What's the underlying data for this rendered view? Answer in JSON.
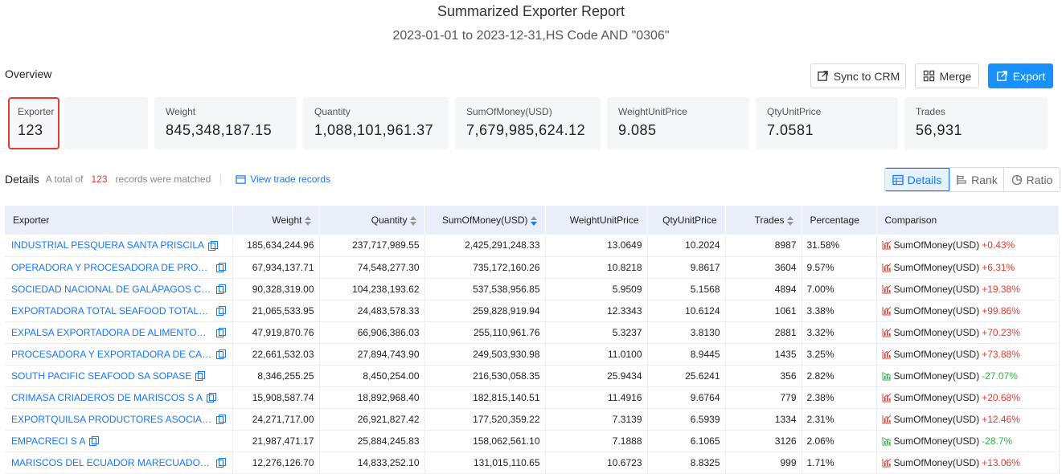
{
  "header": {
    "title": "Summarized Exporter Report",
    "subtitle": "2023-01-01 to 2023-12-31,HS Code AND \"0306\""
  },
  "overview": {
    "label": "Overview",
    "buttons": {
      "sync": "Sync to CRM",
      "merge": "Merge",
      "export": "Export"
    },
    "stats": [
      {
        "label": "Exporter",
        "value": "123"
      },
      {
        "label": "Weight",
        "value": "845,348,187.15"
      },
      {
        "label": "Quantity",
        "value": "1,088,101,961.37"
      },
      {
        "label": "SumOfMoney(USD)",
        "value": "7,679,985,624.12"
      },
      {
        "label": "WeightUnitPrice",
        "value": "9.085"
      },
      {
        "label": "QtyUnitPrice",
        "value": "7.0581"
      },
      {
        "label": "Trades",
        "value": "56,931"
      }
    ]
  },
  "details": {
    "title": "Details",
    "total_prefix": "A total of",
    "count": "123",
    "total_suffix": "records were matched",
    "view_link": "View trade records",
    "views": {
      "details": "Details",
      "rank": "Rank",
      "ratio": "Ratio"
    }
  },
  "table": {
    "columns": [
      "Exporter",
      "Weight",
      "Quantity",
      "SumOfMoney(USD)",
      "WeightUnitPrice",
      "QtyUnitPrice",
      "Trades",
      "Percentage",
      "Comparison"
    ],
    "rows": [
      {
        "exporter": "INDUSTRIAL PESQUERA SANTA PRISCILA",
        "weight": "185,634,244.96",
        "quantity": "237,717,989.55",
        "money": "2,425,291,248.33",
        "wup": "13.0649",
        "qup": "10.2024",
        "trades": "8987",
        "pct": "31.58%",
        "cmp_label": "SumOfMoney(USD)",
        "cmp_change": "+0.43%",
        "dir": "up"
      },
      {
        "exporter": "OPERADORA Y PROCESADORA DE PRODUCTOS…",
        "weight": "67,934,137.71",
        "quantity": "74,548,277.30",
        "money": "735,172,160.26",
        "wup": "10.8218",
        "qup": "9.8617",
        "trades": "3604",
        "pct": "9.57%",
        "cmp_label": "SumOfMoney(USD)",
        "cmp_change": "+6.31%",
        "dir": "up"
      },
      {
        "exporter": "SOCIEDAD NACIONAL DE GALÁPAGOS C A SON…",
        "weight": "90,328,319.00",
        "quantity": "104,238,193.62",
        "money": "537,538,956.85",
        "wup": "5.9509",
        "qup": "5.1568",
        "trades": "4894",
        "pct": "7.00%",
        "cmp_label": "SumOfMoney(USD)",
        "cmp_change": "+19.38%",
        "dir": "up"
      },
      {
        "exporter": "EXPORTADORA TOTAL SEAFOOD TOTALSEAFO…",
        "weight": "21,065,533.95",
        "quantity": "24,483,578.33",
        "money": "259,828,919.94",
        "wup": "12.3343",
        "qup": "10.6124",
        "trades": "1061",
        "pct": "3.38%",
        "cmp_label": "SumOfMoney(USD)",
        "cmp_change": "+99.86%",
        "dir": "up"
      },
      {
        "exporter": "EXPALSA EXPORTADORA DE ALIMENTOS S A",
        "weight": "47,919,870.76",
        "quantity": "66,906,386.03",
        "money": "255,110,961.76",
        "wup": "5.3237",
        "qup": "3.8130",
        "trades": "2881",
        "pct": "3.32%",
        "cmp_label": "SumOfMoney(USD)",
        "cmp_change": "+70.23%",
        "dir": "up"
      },
      {
        "exporter": "PROCESADORA Y EXPORTADORA DE CAMARO…",
        "weight": "22,661,532.03",
        "quantity": "27,894,743.90",
        "money": "249,503,930.98",
        "wup": "11.0100",
        "qup": "8.9445",
        "trades": "1435",
        "pct": "3.25%",
        "cmp_label": "SumOfMoney(USD)",
        "cmp_change": "+73.88%",
        "dir": "up"
      },
      {
        "exporter": "SOUTH PACIFIC SEAFOOD SA SOPASE",
        "weight": "8,346,255.25",
        "quantity": "8,450,254.00",
        "money": "216,530,058.35",
        "wup": "25.9434",
        "qup": "25.6241",
        "trades": "356",
        "pct": "2.82%",
        "cmp_label": "SumOfMoney(USD)",
        "cmp_change": "-27.07%",
        "dir": "down"
      },
      {
        "exporter": "CRIMASA CRIADEROS DE MARISCOS S A",
        "weight": "15,908,587.74",
        "quantity": "18,892,968.40",
        "money": "182,815,140.51",
        "wup": "11.4916",
        "qup": "9.6764",
        "trades": "779",
        "pct": "2.38%",
        "cmp_label": "SumOfMoney(USD)",
        "cmp_change": "+20.68%",
        "dir": "up"
      },
      {
        "exporter": "EXPORTQUILSA PRODUCTORES ASOCIADOS SA",
        "weight": "24,271,717.00",
        "quantity": "26,921,827.42",
        "money": "177,520,359.22",
        "wup": "7.3139",
        "qup": "6.5939",
        "trades": "1334",
        "pct": "2.31%",
        "cmp_label": "SumOfMoney(USD)",
        "cmp_change": "+12.46%",
        "dir": "up"
      },
      {
        "exporter": "EMPACRECI S A",
        "weight": "21,987,471.17",
        "quantity": "25,884,245.83",
        "money": "158,062,561.10",
        "wup": "7.1888",
        "qup": "6.1065",
        "trades": "3126",
        "pct": "2.06%",
        "cmp_label": "SumOfMoney(USD)",
        "cmp_change": "-28.7%",
        "dir": "down"
      },
      {
        "exporter": "MARISCOS DEL ECUADOR MARECUADOR CIA L…",
        "weight": "12,276,126.70",
        "quantity": "14,833,252.10",
        "money": "131,015,110.65",
        "wup": "10.6723",
        "qup": "8.8325",
        "trades": "999",
        "pct": "1.71%",
        "cmp_label": "SumOfMoney(USD)",
        "cmp_change": "+13.06%",
        "dir": "up"
      }
    ]
  },
  "colors": {
    "accent": "#1677ff",
    "up": "#e03c31",
    "down": "#2fb344",
    "header_bg": "#e9eef9"
  }
}
